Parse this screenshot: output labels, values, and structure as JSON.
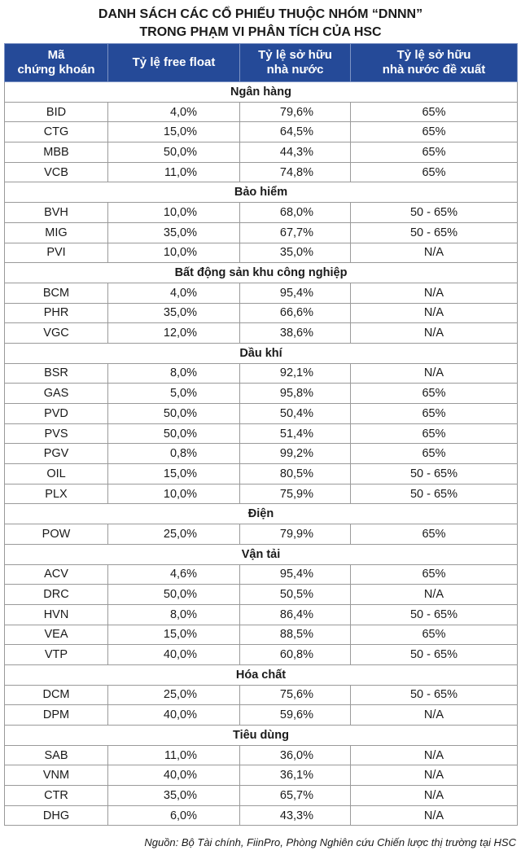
{
  "title": [
    "DANH SÁCH CÁC CỔ PHIẾU THUỘC NHÓM “DNNN”",
    "TRONG PHẠM VI PHÂN TÍCH CỦA HSC"
  ],
  "table": {
    "header": [
      [
        "Mã",
        "chứng khoán"
      ],
      [
        "Tỷ lệ free float"
      ],
      [
        "Tỷ lệ sở hữu",
        "nhà nước"
      ],
      [
        "Tỷ lệ sở hữu",
        "nhà nước đề xuất"
      ]
    ],
    "groups": [
      {
        "name": "Ngân hàng",
        "rows": [
          [
            "BID",
            "4,0%",
            "79,6%",
            "65%"
          ],
          [
            "CTG",
            "15,0%",
            "64,5%",
            "65%"
          ],
          [
            "MBB",
            "50,0%",
            "44,3%",
            "65%"
          ],
          [
            "VCB",
            "11,0%",
            "74,8%",
            "65%"
          ]
        ]
      },
      {
        "name": "Bảo hiểm",
        "rows": [
          [
            "BVH",
            "10,0%",
            "68,0%",
            "50 - 65%"
          ],
          [
            "MIG",
            "35,0%",
            "67,7%",
            "50 - 65%"
          ],
          [
            "PVI",
            "10,0%",
            "35,0%",
            "N/A"
          ]
        ]
      },
      {
        "name": "Bất động sản khu công nghiệp",
        "rows": [
          [
            "BCM",
            "4,0%",
            "95,4%",
            "N/A"
          ],
          [
            "PHR",
            "35,0%",
            "66,6%",
            "N/A"
          ],
          [
            "VGC",
            "12,0%",
            "38,6%",
            "N/A"
          ]
        ]
      },
      {
        "name": "Dầu khí",
        "rows": [
          [
            "BSR",
            "8,0%",
            "92,1%",
            "N/A"
          ],
          [
            "GAS",
            "5,0%",
            "95,8%",
            "65%"
          ],
          [
            "PVD",
            "50,0%",
            "50,4%",
            "65%"
          ],
          [
            "PVS",
            "50,0%",
            "51,4%",
            "65%"
          ],
          [
            "PGV",
            "0,8%",
            "99,2%",
            "65%"
          ],
          [
            "OIL",
            "15,0%",
            "80,5%",
            "50 - 65%"
          ],
          [
            "PLX",
            "10,0%",
            "75,9%",
            "50 - 65%"
          ]
        ]
      },
      {
        "name": "Điện",
        "rows": [
          [
            "POW",
            "25,0%",
            "79,9%",
            "65%"
          ]
        ]
      },
      {
        "name": "Vận tải",
        "rows": [
          [
            "ACV",
            "4,6%",
            "95,4%",
            "65%"
          ],
          [
            "DRC",
            "50,0%",
            "50,5%",
            "N/A"
          ],
          [
            "HVN",
            "8,0%",
            "86,4%",
            "50 - 65%"
          ],
          [
            "VEA",
            "15,0%",
            "88,5%",
            "65%"
          ],
          [
            "VTP",
            "40,0%",
            "60,8%",
            "50 - 65%"
          ]
        ]
      },
      {
        "name": "Hóa chất",
        "rows": [
          [
            "DCM",
            "25,0%",
            "75,6%",
            "50 - 65%"
          ],
          [
            "DPM",
            "40,0%",
            "59,6%",
            "N/A"
          ]
        ]
      },
      {
        "name": "Tiêu dùng",
        "rows": [
          [
            "SAB",
            "11,0%",
            "36,0%",
            "N/A"
          ],
          [
            "VNM",
            "40,0%",
            "36,1%",
            "N/A"
          ],
          [
            "CTR",
            "35,0%",
            "65,7%",
            "N/A"
          ],
          [
            "DHG",
            "6,0%",
            "43,3%",
            "N/A"
          ]
        ]
      }
    ]
  },
  "source": "Nguồn: Bộ Tài chính, FiinPro, Phòng Nghiên cứu Chiến lược thị trường tại HSC"
}
